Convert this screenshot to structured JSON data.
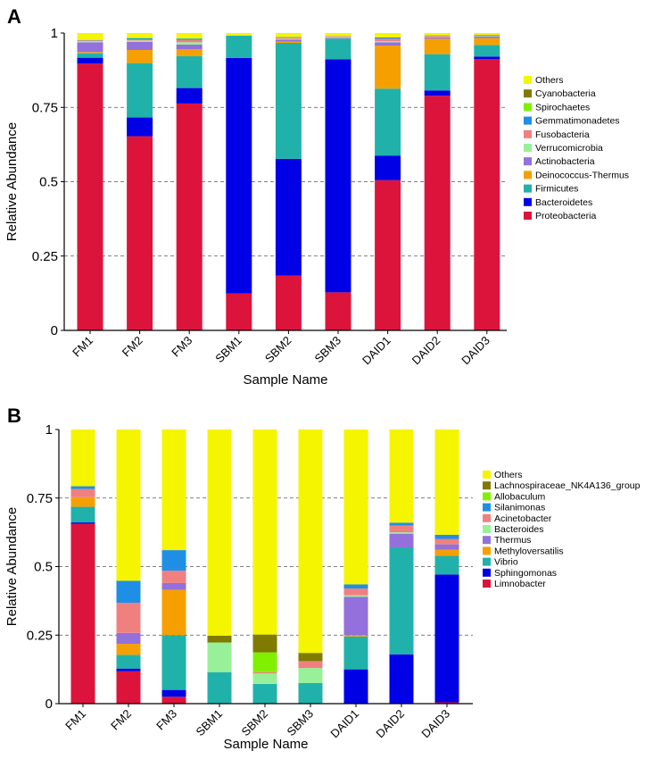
{
  "colors": {
    "others": "#f5f500",
    "cyanobacteria": "#7f7a00",
    "spirochaetes": "#80f000",
    "gemmatimonadetes": "#1f8fe6",
    "fusobacteria": "#f08080",
    "verrucomicrobia": "#98f098",
    "actinobacteria": "#9370db",
    "deinococcus": "#f5a000",
    "firmicutes": "#20b2aa",
    "bacteroidetes": "#0000e6",
    "proteobacteria": "#dc143c"
  },
  "chart_data": [
    {
      "panel_label": "A",
      "type": "bar",
      "stacked": true,
      "xlabel": "Sample Name",
      "ylabel": "Relative Abundance",
      "ylim": [
        0,
        1
      ],
      "yticks": [
        "0",
        "0.25",
        "0.5",
        "0.75",
        "1"
      ],
      "ytick_values": [
        0,
        0.25,
        0.5,
        0.75,
        1
      ],
      "grid": "dashed lines at 0.25, 0.5, 0.75",
      "legend_position": "right",
      "categories": [
        "FM1",
        "FM2",
        "FM3",
        "SBM1",
        "SBM2",
        "SBM3",
        "DAID1",
        "DAID2",
        "DAID3"
      ],
      "series": [
        {
          "name": "Proteobacteria",
          "color": "#dc143c",
          "values": [
            0.897,
            0.653,
            0.763,
            0.124,
            0.184,
            0.128,
            0.505,
            0.789,
            0.912
          ]
        },
        {
          "name": "Bacteroidetes",
          "color": "#0000e6",
          "values": [
            0.02,
            0.063,
            0.052,
            0.792,
            0.393,
            0.784,
            0.083,
            0.018,
            0.009
          ]
        },
        {
          "name": "Firmicutes",
          "color": "#20b2aa",
          "values": [
            0.015,
            0.183,
            0.107,
            0.075,
            0.39,
            0.069,
            0.225,
            0.122,
            0.039
          ]
        },
        {
          "name": "Deinococcus-Thermus",
          "color": "#f5a000",
          "values": [
            0.004,
            0.044,
            0.023,
            0.0,
            0.004,
            0.0,
            0.145,
            0.052,
            0.023
          ]
        },
        {
          "name": "Actinobacteria",
          "color": "#9370db",
          "values": [
            0.033,
            0.027,
            0.016,
            0.0,
            0.007,
            0.003,
            0.011,
            0.005,
            0.006
          ]
        },
        {
          "name": "Verrucomicrobia",
          "color": "#98f098",
          "values": [
            0.004,
            0.005,
            0.008,
            0.0,
            0.003,
            0.003,
            0.004,
            0.002,
            0.002
          ]
        },
        {
          "name": "Fusobacteria",
          "color": "#f08080",
          "values": [
            0.002,
            0.004,
            0.008,
            0.0,
            0.005,
            0.003,
            0.008,
            0.003,
            0.002
          ]
        },
        {
          "name": "Gemmatimonadetes",
          "color": "#1f8fe6",
          "values": [
            0.001,
            0.003,
            0.004,
            0.0,
            0.001,
            0.0,
            0.004,
            0.001,
            0.001
          ]
        },
        {
          "name": "Spirochaetes",
          "color": "#80f000",
          "values": [
            0.001,
            0.002,
            0.002,
            0.0,
            0.0,
            0.0,
            0.0,
            0.0,
            0.0
          ]
        },
        {
          "name": "Cyanobacteria",
          "color": "#7f7a00",
          "values": [
            0.0,
            0.0,
            0.0,
            0.0,
            0.0,
            0.0,
            0.0,
            0.0,
            0.0
          ]
        },
        {
          "name": "Others",
          "color": "#f5f500",
          "values": [
            0.023,
            0.016,
            0.017,
            0.009,
            0.013,
            0.01,
            0.015,
            0.008,
            0.006
          ]
        }
      ]
    },
    {
      "panel_label": "B",
      "type": "bar",
      "stacked": true,
      "xlabel": "Sample Name",
      "ylabel": "Relative Abundance",
      "ylim": [
        0,
        1
      ],
      "yticks": [
        "0",
        "0.25",
        "0.5",
        "0.75",
        "1"
      ],
      "ytick_values": [
        0,
        0.25,
        0.5,
        0.75,
        1
      ],
      "grid": "dashed lines at 0.25, 0.5, 0.75",
      "legend_position": "right",
      "categories": [
        "FM1",
        "FM2",
        "FM3",
        "SBM1",
        "SBM2",
        "SBM3",
        "DAID1",
        "DAID2",
        "DAID3"
      ],
      "series": [
        {
          "name": "Limnobacter",
          "color": "#dc143c",
          "values": [
            0.656,
            0.118,
            0.025,
            0.0,
            0.0,
            0.0,
            0.0,
            0.0,
            0.005
          ]
        },
        {
          "name": "Sphingomonas",
          "color": "#0000e6",
          "values": [
            0.005,
            0.01,
            0.025,
            0.0,
            0.0,
            0.0,
            0.125,
            0.18,
            0.466
          ]
        },
        {
          "name": "Vibrio",
          "color": "#20b2aa",
          "values": [
            0.057,
            0.05,
            0.2,
            0.115,
            0.072,
            0.075,
            0.12,
            0.39,
            0.068
          ]
        },
        {
          "name": "Methyloversatilis",
          "color": "#f5a000",
          "values": [
            0.035,
            0.04,
            0.165,
            0.0,
            0.0,
            0.0,
            0.005,
            0.0,
            0.022
          ]
        },
        {
          "name": "Thermus",
          "color": "#9370db",
          "values": [
            0.0,
            0.04,
            0.025,
            0.0,
            0.0,
            0.0,
            0.14,
            0.05,
            0.02
          ]
        },
        {
          "name": "Bacteroides",
          "color": "#98f098",
          "values": [
            0.0,
            0.0,
            0.0,
            0.108,
            0.038,
            0.055,
            0.005,
            0.005,
            0.0
          ]
        },
        {
          "name": "Acinetobacter",
          "color": "#f08080",
          "values": [
            0.03,
            0.11,
            0.045,
            0.0,
            0.005,
            0.025,
            0.025,
            0.025,
            0.02
          ]
        },
        {
          "name": "Silanimonas",
          "color": "#1f8fe6",
          "values": [
            0.01,
            0.08,
            0.075,
            0.0,
            0.0,
            0.0,
            0.015,
            0.01,
            0.015
          ]
        },
        {
          "name": "Allobaculum",
          "color": "#80f000",
          "values": [
            0.0,
            0.0,
            0.0,
            0.0,
            0.072,
            0.0,
            0.0,
            0.0,
            0.0
          ]
        },
        {
          "name": "Lachnospiraceae_NK4A136_group",
          "color": "#7f7a00",
          "values": [
            0.0,
            0.0,
            0.0,
            0.025,
            0.065,
            0.03,
            0.0,
            0.0,
            0.0
          ]
        },
        {
          "name": "Others",
          "color": "#f5f500",
          "values": [
            0.207,
            0.552,
            0.44,
            0.752,
            0.748,
            0.815,
            0.565,
            0.34,
            0.384
          ]
        }
      ]
    }
  ]
}
